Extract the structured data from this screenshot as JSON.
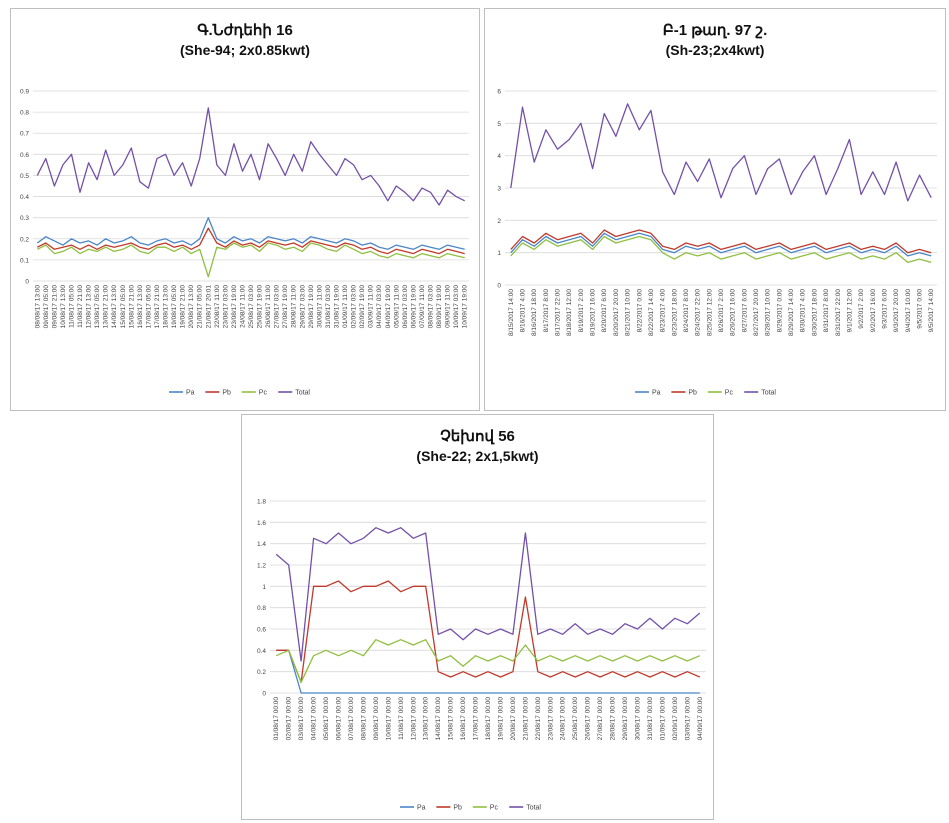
{
  "colors": {
    "Pa": "#4a86c8",
    "Pb": "#c0392b",
    "Pc": "#8fbf3f",
    "Total": "#7451a8",
    "grid": "#d9d9d9"
  },
  "chart_data": [
    {
      "type": "line",
      "title": "Գ.Նժդեհի 16",
      "subtitle": "(She-94; 2x0.85kwt)",
      "ylim": [
        0,
        0.9
      ],
      "yticks": [
        "0",
        "0.1",
        "0.2",
        "0.3",
        "0.4",
        "0.5",
        "0.6",
        "0.7",
        "0.8",
        "0.9"
      ],
      "x": [
        "08/08/17 13:00",
        "09/08/17 05:00",
        "09/08/17 21:00",
        "10/08/17 13:00",
        "11/08/17 05:00",
        "11/08/17 21:00",
        "12/08/17 13:00",
        "13/08/17 05:00",
        "13/08/17 21:00",
        "14/08/17 13:00",
        "15/08/17 05:00",
        "15/08/17 21:00",
        "16/08/17 13:00",
        "17/08/17 05:00",
        "17/08/17 21:00",
        "18/08/17 13:00",
        "19/08/17 05:00",
        "19/08/17 21:00",
        "20/08/17 13:00",
        "21/08/17 05:00",
        "21/08/17 20:01",
        "22/08/17 11:00",
        "23/08/17 03:00",
        "23/08/17 19:00",
        "24/08/17 11:00",
        "25/08/17 03:00",
        "25/08/17 19:00",
        "26/08/17 11:00",
        "27/08/17 03:00",
        "27/08/17 19:00",
        "28/08/17 11:00",
        "29/08/17 03:00",
        "29/08/17 19:00",
        "30/08/17 11:00",
        "31/08/17 03:00",
        "31/08/17 19:00",
        "01/09/17 11:00",
        "02/09/17 03:00",
        "02/09/17 19:00",
        "03/09/17 11:00",
        "04/09/17 03:00",
        "04/09/17 19:00",
        "05/09/17 11:00",
        "06/09/17 03:00",
        "06/09/17 19:00",
        "07/09/17 11:00",
        "08/09/17 03:00",
        "08/09/17 19:00",
        "09/09/17 11:00",
        "10/09/17 03:00",
        "10/09/17 19:00"
      ],
      "series": [
        {
          "name": "Pa",
          "values": [
            0.18,
            0.21,
            0.19,
            0.17,
            0.2,
            0.18,
            0.19,
            0.17,
            0.2,
            0.18,
            0.19,
            0.21,
            0.18,
            0.17,
            0.19,
            0.2,
            0.18,
            0.19,
            0.17,
            0.2,
            0.3,
            0.2,
            0.18,
            0.21,
            0.19,
            0.2,
            0.18,
            0.21,
            0.2,
            0.19,
            0.2,
            0.18,
            0.21,
            0.2,
            0.19,
            0.18,
            0.2,
            0.19,
            0.17,
            0.18,
            0.16,
            0.15,
            0.17,
            0.16,
            0.15,
            0.17,
            0.16,
            0.15,
            0.17,
            0.16,
            0.15
          ]
        },
        {
          "name": "Pb",
          "values": [
            0.16,
            0.18,
            0.15,
            0.16,
            0.17,
            0.15,
            0.17,
            0.15,
            0.17,
            0.16,
            0.17,
            0.18,
            0.16,
            0.15,
            0.17,
            0.18,
            0.16,
            0.17,
            0.15,
            0.17,
            0.25,
            0.18,
            0.16,
            0.19,
            0.17,
            0.18,
            0.16,
            0.19,
            0.18,
            0.17,
            0.18,
            0.16,
            0.19,
            0.18,
            0.17,
            0.16,
            0.18,
            0.17,
            0.15,
            0.16,
            0.14,
            0.13,
            0.15,
            0.14,
            0.13,
            0.15,
            0.14,
            0.13,
            0.15,
            0.14,
            0.13
          ]
        },
        {
          "name": "Pc",
          "values": [
            0.15,
            0.17,
            0.13,
            0.14,
            0.16,
            0.13,
            0.15,
            0.14,
            0.16,
            0.14,
            0.15,
            0.17,
            0.14,
            0.13,
            0.16,
            0.16,
            0.14,
            0.16,
            0.13,
            0.15,
            0.02,
            0.16,
            0.15,
            0.18,
            0.16,
            0.17,
            0.14,
            0.18,
            0.17,
            0.15,
            0.16,
            0.14,
            0.18,
            0.17,
            0.15,
            0.14,
            0.17,
            0.15,
            0.13,
            0.14,
            0.12,
            0.11,
            0.13,
            0.12,
            0.11,
            0.13,
            0.12,
            0.11,
            0.13,
            0.12,
            0.11
          ]
        },
        {
          "name": "Total",
          "values": [
            0.5,
            0.58,
            0.45,
            0.55,
            0.6,
            0.42,
            0.56,
            0.48,
            0.62,
            0.5,
            0.55,
            0.63,
            0.47,
            0.44,
            0.58,
            0.6,
            0.5,
            0.56,
            0.45,
            0.58,
            0.82,
            0.55,
            0.5,
            0.65,
            0.52,
            0.6,
            0.48,
            0.65,
            0.58,
            0.5,
            0.6,
            0.52,
            0.66,
            0.6,
            0.55,
            0.5,
            0.58,
            0.55,
            0.48,
            0.5,
            0.45,
            0.38,
            0.45,
            0.42,
            0.38,
            0.44,
            0.42,
            0.36,
            0.43,
            0.4,
            0.38
          ]
        }
      ]
    },
    {
      "type": "line",
      "title": "Բ-1 թաղ. 97 շ.",
      "subtitle": "(Sh-23;2x4kwt)",
      "ylim": [
        0,
        6
      ],
      "yticks": [
        "0",
        "1",
        "2",
        "3",
        "4",
        "5",
        "6"
      ],
      "x": [
        "8/15/2017 14:00",
        "8/16/2017 4:00",
        "8/16/2017 18:00",
        "8/17/2017 8:00",
        "8/17/2017 22:00",
        "8/18/2017 12:00",
        "8/19/2017 2:00",
        "8/19/2017 16:00",
        "8/20/2017 6:00",
        "8/20/2017 20:00",
        "8/21/2017 10:00",
        "8/22/2017 0:00",
        "8/22/2017 14:00",
        "8/23/2017 4:00",
        "8/23/2017 18:00",
        "8/24/2017 8:00",
        "8/24/2017 22:00",
        "8/25/2017 12:00",
        "8/26/2017 2:00",
        "8/26/2017 16:00",
        "8/27/2017 6:00",
        "8/27/2017 20:00",
        "8/28/2017 10:00",
        "8/29/2017 0:00",
        "8/29/2017 14:00",
        "8/30/2017 4:00",
        "8/30/2017 18:00",
        "8/31/2017 8:00",
        "8/31/2017 22:00",
        "9/1/2017 12:00",
        "9/2/2017 2:00",
        "9/2/2017 16:00",
        "9/3/2017 6:00",
        "9/3/2017 20:00",
        "9/4/2017 10:00",
        "9/5/2017 0:00",
        "9/5/2017 14:00"
      ],
      "series": [
        {
          "name": "Pa",
          "values": [
            1.0,
            1.4,
            1.2,
            1.5,
            1.3,
            1.4,
            1.5,
            1.2,
            1.6,
            1.4,
            1.5,
            1.6,
            1.5,
            1.1,
            1.0,
            1.2,
            1.1,
            1.2,
            1.0,
            1.1,
            1.2,
            1.0,
            1.1,
            1.2,
            1.0,
            1.1,
            1.2,
            1.0,
            1.1,
            1.2,
            1.0,
            1.1,
            1.0,
            1.2,
            0.9,
            1.0,
            0.9
          ]
        },
        {
          "name": "Pb",
          "values": [
            1.1,
            1.5,
            1.3,
            1.6,
            1.4,
            1.5,
            1.6,
            1.3,
            1.7,
            1.5,
            1.6,
            1.7,
            1.6,
            1.2,
            1.1,
            1.3,
            1.2,
            1.3,
            1.1,
            1.2,
            1.3,
            1.1,
            1.2,
            1.3,
            1.1,
            1.2,
            1.3,
            1.1,
            1.2,
            1.3,
            1.1,
            1.2,
            1.1,
            1.3,
            1.0,
            1.1,
            1.0
          ]
        },
        {
          "name": "Pc",
          "values": [
            0.9,
            1.3,
            1.1,
            1.4,
            1.2,
            1.3,
            1.4,
            1.1,
            1.5,
            1.3,
            1.4,
            1.5,
            1.4,
            1.0,
            0.8,
            1.0,
            0.9,
            1.0,
            0.8,
            0.9,
            1.0,
            0.8,
            0.9,
            1.0,
            0.8,
            0.9,
            1.0,
            0.8,
            0.9,
            1.0,
            0.8,
            0.9,
            0.8,
            1.0,
            0.7,
            0.8,
            0.7
          ]
        },
        {
          "name": "Total",
          "values": [
            3.0,
            5.5,
            3.8,
            4.8,
            4.2,
            4.5,
            5.0,
            3.6,
            5.3,
            4.6,
            5.6,
            4.8,
            5.4,
            3.5,
            2.8,
            3.8,
            3.2,
            3.9,
            2.7,
            3.6,
            4.0,
            2.8,
            3.6,
            3.9,
            2.8,
            3.5,
            4.0,
            2.8,
            3.6,
            4.5,
            2.8,
            3.5,
            2.8,
            3.8,
            2.6,
            3.4,
            2.7
          ]
        }
      ]
    },
    {
      "type": "line",
      "title": "Չեխով 56",
      "subtitle": "(She-22; 2x1,5kwt)",
      "ylim": [
        0,
        1.8
      ],
      "yticks": [
        "0",
        "0.2",
        "0.4",
        "0.6",
        "0.8",
        "1",
        "1.2",
        "1.4",
        "1.6",
        "1.8"
      ],
      "x": [
        "01/08/17 00:00",
        "02/08/17 00:00",
        "03/08/17 00:00",
        "04/08/17 00:00",
        "05/08/17 00:00",
        "06/08/17 00:00",
        "07/08/17 00:00",
        "08/08/17 00:00",
        "09/08/17 00:00",
        "10/08/17 00:00",
        "11/08/17 00:00",
        "12/08/17 00:00",
        "13/08/17 00:00",
        "14/08/17 00:00",
        "15/08/17 00:00",
        "16/08/17 00:00",
        "17/08/17 00:00",
        "18/08/17 00:00",
        "19/08/17 00:00",
        "20/08/17 00:00",
        "21/08/17 00:00",
        "22/08/17 00:00",
        "23/08/17 00:00",
        "24/08/17 00:00",
        "25/08/17 00:00",
        "26/08/17 00:00",
        "27/08/17 00:00",
        "28/08/17 00:00",
        "29/08/17 00:00",
        "30/08/17 00:00",
        "31/08/17 00:00",
        "01/09/17 00:00",
        "02/09/17 00:00",
        "03/09/17 00:00",
        "04/09/17 00:00"
      ],
      "series": [
        {
          "name": "Pa",
          "values": [
            0.4,
            0.4,
            0.0,
            0.0,
            0.0,
            0.0,
            0.0,
            0.0,
            0.0,
            0.0,
            0.0,
            0.0,
            0.0,
            0.0,
            0.0,
            0.0,
            0.0,
            0.0,
            0.0,
            0.0,
            0.0,
            0.0,
            0.0,
            0.0,
            0.0,
            0.0,
            0.0,
            0.0,
            0.0,
            0.0,
            0.0,
            0.0,
            0.0,
            0.0,
            0.0
          ]
        },
        {
          "name": "Pb",
          "values": [
            0.4,
            0.4,
            0.1,
            1.0,
            1.0,
            1.05,
            0.95,
            1.0,
            1.0,
            1.05,
            0.95,
            1.0,
            1.0,
            0.2,
            0.15,
            0.2,
            0.15,
            0.2,
            0.15,
            0.2,
            0.9,
            0.2,
            0.15,
            0.2,
            0.15,
            0.2,
            0.15,
            0.2,
            0.15,
            0.2,
            0.15,
            0.2,
            0.15,
            0.2,
            0.15
          ]
        },
        {
          "name": "Pc",
          "values": [
            0.35,
            0.4,
            0.1,
            0.35,
            0.4,
            0.35,
            0.4,
            0.35,
            0.5,
            0.45,
            0.5,
            0.45,
            0.5,
            0.3,
            0.35,
            0.25,
            0.35,
            0.3,
            0.35,
            0.3,
            0.45,
            0.3,
            0.35,
            0.3,
            0.35,
            0.3,
            0.35,
            0.3,
            0.35,
            0.3,
            0.35,
            0.3,
            0.35,
            0.3,
            0.35
          ]
        },
        {
          "name": "Total",
          "values": [
            1.3,
            1.2,
            0.3,
            1.45,
            1.4,
            1.5,
            1.4,
            1.45,
            1.55,
            1.5,
            1.55,
            1.45,
            1.5,
            0.55,
            0.6,
            0.5,
            0.6,
            0.55,
            0.6,
            0.55,
            1.5,
            0.55,
            0.6,
            0.55,
            0.65,
            0.55,
            0.6,
            0.55,
            0.65,
            0.6,
            0.7,
            0.6,
            0.7,
            0.65,
            0.75
          ]
        }
      ]
    }
  ]
}
